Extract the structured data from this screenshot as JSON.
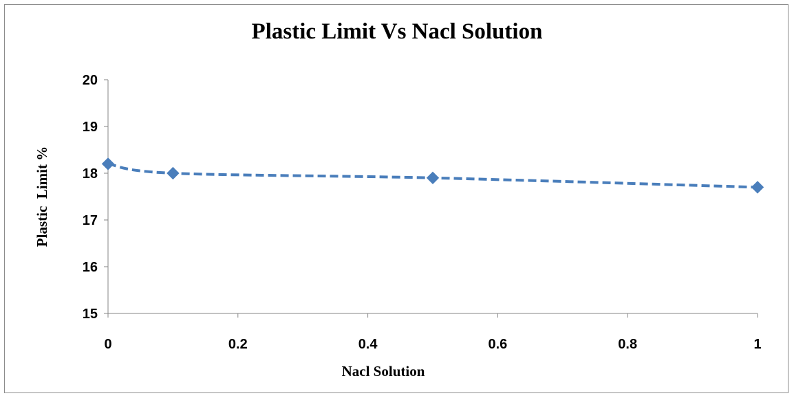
{
  "chart_data": {
    "type": "line",
    "title": "Plastic Limit Vs Nacl Solution",
    "xlabel": "Nacl Solution",
    "ylabel": "Plastic  Limit %",
    "x": [
      0,
      0.1,
      0.5,
      1
    ],
    "series": [
      {
        "values": [
          18.2,
          18.0,
          17.9,
          17.7
        ]
      }
    ],
    "xlim": [
      0,
      1
    ],
    "ylim": [
      15,
      20
    ],
    "xticks": [
      0,
      0.2,
      0.4,
      0.6,
      0.8,
      1
    ],
    "xtick_labels": [
      "0",
      "0.2",
      "0.4",
      "0.6",
      "0.8",
      "1"
    ],
    "yticks": [
      15,
      16,
      17,
      18,
      19,
      20
    ],
    "ytick_labels": [
      "15",
      "16",
      "17",
      "18",
      "19",
      "20"
    ],
    "grid": false,
    "legend": "none",
    "line_style": "dashed smoothed",
    "marker": "diamond",
    "series_color": "#4a7ebb"
  }
}
